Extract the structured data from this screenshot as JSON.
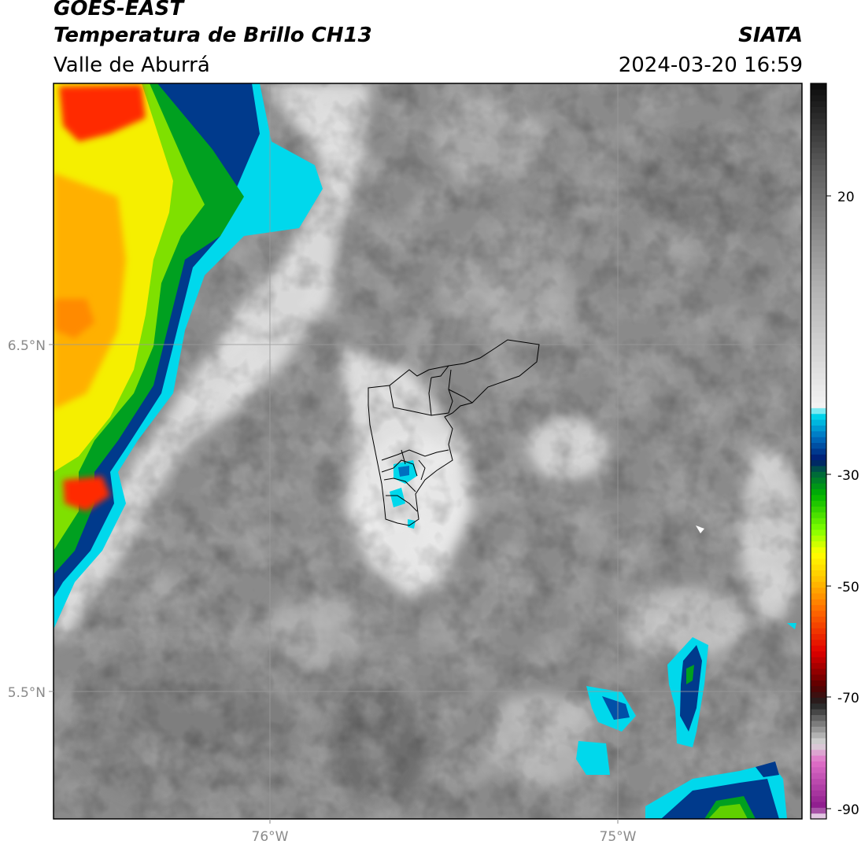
{
  "header": {
    "satellite": "GOES-EAST",
    "product": "Temperatura de Brillo CH13",
    "region": "Valle de Aburrá",
    "brand": "SIATA",
    "datetime": "2024-03-20 16:59"
  },
  "map": {
    "lat_ticks": [
      "6.5°N",
      "5.5°N"
    ],
    "lon_ticks": [
      "76°W",
      "75°W"
    ],
    "base_color": "#8a8a8a"
  },
  "colorbar": {
    "ticks": [
      "20",
      "-30",
      "-50",
      "-70",
      "-90"
    ],
    "range": [
      -92,
      35
    ],
    "stops": [
      {
        "v": -92,
        "c": "#ffffff"
      },
      {
        "v": -90,
        "c": "#8b1a8b"
      },
      {
        "v": -82,
        "c": "#e070c8"
      },
      {
        "v": -79,
        "c": "#d8d8d8"
      },
      {
        "v": -72,
        "c": "#202020"
      },
      {
        "v": -69,
        "c": "#5a0000"
      },
      {
        "v": -63,
        "c": "#e00000"
      },
      {
        "v": -56,
        "c": "#ff6a00"
      },
      {
        "v": -50,
        "c": "#ffcc00"
      },
      {
        "v": -46,
        "c": "#ffff00"
      },
      {
        "v": -42,
        "c": "#80ff00"
      },
      {
        "v": -36,
        "c": "#00b400"
      },
      {
        "v": -32,
        "c": "#006040"
      },
      {
        "v": -30,
        "c": "#001870"
      },
      {
        "v": -26,
        "c": "#0070c0"
      },
      {
        "v": -22,
        "c": "#00e0f0"
      },
      {
        "v": -21,
        "c": "#f4f4f4"
      },
      {
        "v": 0,
        "c": "#b0b0b0"
      },
      {
        "v": 20,
        "c": "#606060"
      },
      {
        "v": 35,
        "c": "#0a0a0a"
      }
    ]
  }
}
